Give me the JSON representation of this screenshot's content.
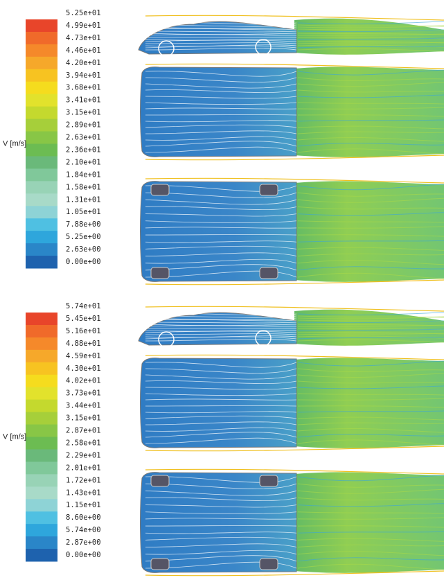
{
  "panels": [
    {
      "quantity_label": "V [m/s]",
      "scale_labels": [
        "5.25e+01",
        "4.99e+01",
        "4.73e+01",
        "4.46e+01",
        "4.20e+01",
        "3.94e+01",
        "3.68e+01",
        "3.41e+01",
        "3.15e+01",
        "2.89e+01",
        "2.63e+01",
        "2.36e+01",
        "2.10e+01",
        "1.84e+01",
        "1.58e+01",
        "1.31e+01",
        "1.05e+01",
        "7.88e+00",
        "5.25e+00",
        "2.63e+00",
        "0.00e+00"
      ]
    },
    {
      "quantity_label": "V [m/s]",
      "scale_labels": [
        "5.74e+01",
        "5.45e+01",
        "5.16e+01",
        "4.88e+01",
        "4.59e+01",
        "4.30e+01",
        "4.02e+01",
        "3.73e+01",
        "3.44e+01",
        "3.15e+01",
        "2.87e+01",
        "2.58e+01",
        "2.29e+01",
        "2.01e+01",
        "1.72e+01",
        "1.43e+01",
        "1.15e+01",
        "8.60e+00",
        "5.74e+00",
        "2.87e+00",
        "0.00e+00"
      ]
    }
  ]
}
